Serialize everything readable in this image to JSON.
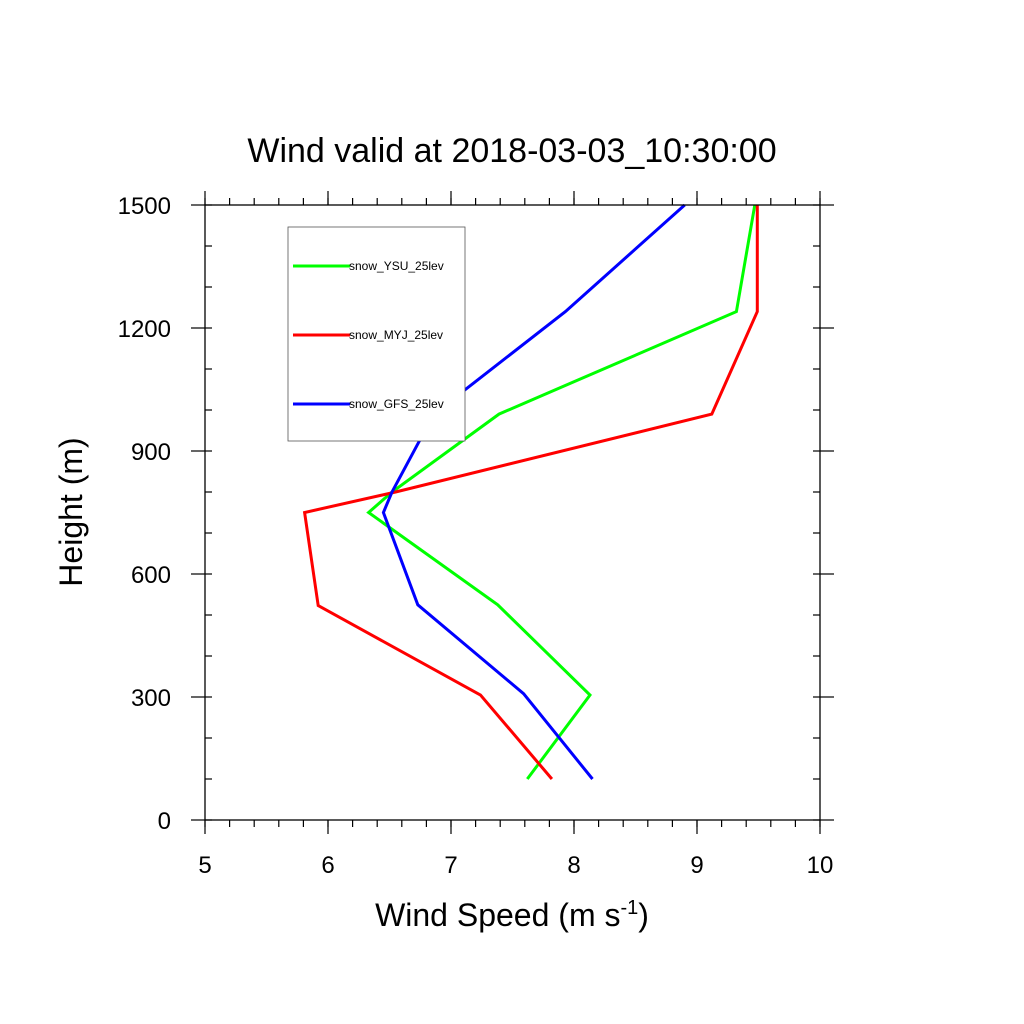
{
  "chart_data": {
    "type": "line",
    "title": "Wind valid at 2018-03-03_10:30:00",
    "xlabel": "Wind Speed (m s",
    "xlabel_sup": "-1",
    "xlabel_close": ")",
    "ylabel": "Height (m)",
    "xlim": [
      5,
      10
    ],
    "ylim": [
      0,
      1500
    ],
    "x_ticks": [
      5,
      6,
      7,
      8,
      9,
      10
    ],
    "y_ticks": [
      0,
      300,
      600,
      900,
      1200,
      1500
    ],
    "x_tick_labels": [
      "5",
      "6",
      "7",
      "8",
      "9",
      "10"
    ],
    "y_tick_labels": [
      "0",
      "300",
      "600",
      "900",
      "1200",
      "1500"
    ],
    "x_minor_step": 0.2,
    "y_minor_step": 100,
    "grid": false,
    "legend_position": "top-left",
    "series": [
      {
        "name": "snow_YSU_25lev",
        "color": "#00ff00",
        "points": [
          [
            7.62,
            100
          ],
          [
            8.13,
            305
          ],
          [
            7.38,
            525
          ],
          [
            6.33,
            750
          ],
          [
            6.52,
            800
          ],
          [
            7.39,
            990
          ],
          [
            9.32,
            1240
          ],
          [
            9.47,
            1500
          ]
        ]
      },
      {
        "name": "snow_MYJ_25lev",
        "color": "#ff0000",
        "points": [
          [
            7.82,
            100
          ],
          [
            7.24,
            305
          ],
          [
            5.92,
            523
          ],
          [
            5.81,
            750
          ],
          [
            6.55,
            800
          ],
          [
            9.12,
            990
          ],
          [
            9.49,
            1240
          ],
          [
            9.49,
            1500
          ]
        ]
      },
      {
        "name": "snow_GFS_25lev",
        "color": "#0000ff",
        "points": [
          [
            8.15,
            100
          ],
          [
            7.59,
            308
          ],
          [
            6.73,
            525
          ],
          [
            6.45,
            750
          ],
          [
            6.52,
            800
          ],
          [
            6.86,
            990
          ],
          [
            7.93,
            1240
          ],
          [
            8.9,
            1500
          ]
        ]
      }
    ]
  }
}
